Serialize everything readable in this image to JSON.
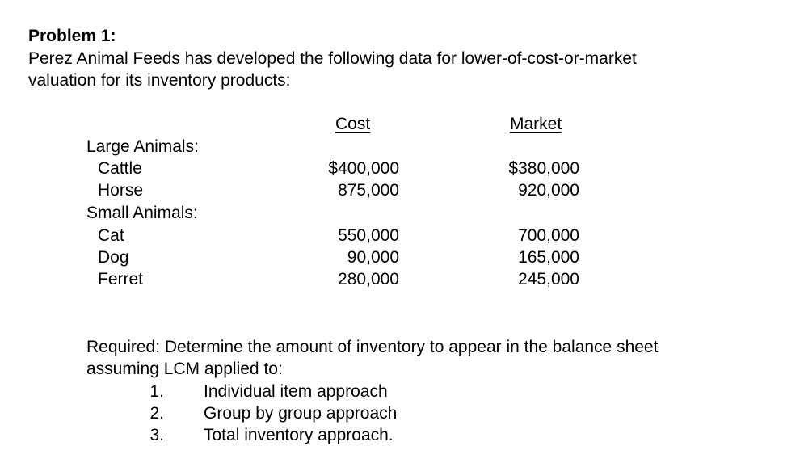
{
  "problem_title": "Problem 1:",
  "intro": {
    "line1": "Perez Animal Feeds has developed the following data for lower-of-cost-or-market",
    "line2": "valuation for its inventory products:"
  },
  "table": {
    "header_cost": "Cost",
    "header_market": "Market",
    "groups": [
      {
        "label": "Large Animals:",
        "items": [
          {
            "name": "Cattle",
            "cost": "$400,000",
            "market": "$380,000"
          },
          {
            "name": "Horse",
            "cost": "875,000",
            "market": "920,000"
          }
        ]
      },
      {
        "label": "Small Animals:",
        "items": [
          {
            "name": "Cat",
            "cost": "550,000",
            "market": "700,000"
          },
          {
            "name": "Dog",
            "cost": "90,000",
            "market": "165,000"
          },
          {
            "name": "Ferret",
            "cost": "280,000",
            "market": "245,000"
          }
        ]
      }
    ]
  },
  "required": {
    "line1": "Required: Determine the amount of inventory to appear in the balance sheet",
    "line2": "assuming LCM applied to:",
    "options": [
      {
        "num": "1.",
        "text": "Individual item approach"
      },
      {
        "num": "2.",
        "text": "Group by group approach"
      },
      {
        "num": "3.",
        "text": "Total inventory approach."
      }
    ]
  }
}
